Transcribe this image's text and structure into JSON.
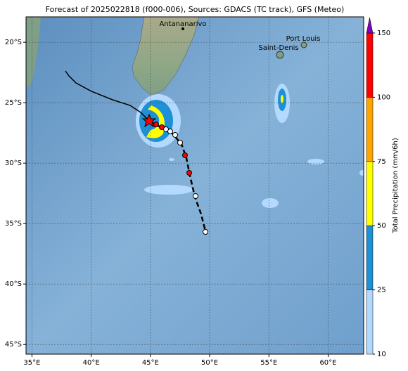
{
  "map": {
    "title": "Forecast of 2025022818 (f000-006), Sources: GDACS (TC track), GFS (Meteo)",
    "xlim": [
      34.5,
      63
    ],
    "ylim": [
      -45.8,
      -17.9
    ],
    "xticks": [
      {
        "value": 35,
        "label": "35°E"
      },
      {
        "value": 40,
        "label": "40°E"
      },
      {
        "value": 45,
        "label": "45°E"
      },
      {
        "value": 50,
        "label": "50°E"
      },
      {
        "value": 55,
        "label": "55°E"
      },
      {
        "value": 60,
        "label": "60°E"
      }
    ],
    "yticks": [
      {
        "value": -20,
        "label": "20°S"
      },
      {
        "value": -25,
        "label": "25°S"
      },
      {
        "value": -30,
        "label": "30°S"
      },
      {
        "value": -35,
        "label": "35°S"
      },
      {
        "value": -40,
        "label": "40°S"
      },
      {
        "value": -45,
        "label": "45°S"
      }
    ],
    "grid": true,
    "places": [
      "Antananarivo",
      "Port Louis",
      "Saint-Denis"
    ]
  },
  "colorbar": {
    "label": "Total Precipitation (mm/6h)",
    "ticks": [
      10,
      25,
      50,
      75,
      100,
      150
    ],
    "colors": [
      "#b3d9ff",
      "#1e90d6",
      "#ffff00",
      "#ffa500",
      "#ff0000"
    ],
    "extend_color": "#8000c0"
  }
}
